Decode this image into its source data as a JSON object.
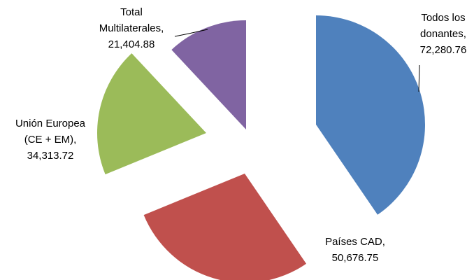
{
  "chart_data": {
    "type": "pie",
    "categories": [
      [
        "Todos los",
        "donantes,"
      ],
      [
        "Países CAD,"
      ],
      [
        "Unión Europea",
        "(CE + EM),"
      ],
      [
        "Total",
        "Multilaterales,"
      ]
    ],
    "values": [
      72280.76,
      50676.75,
      34313.72,
      21404.88
    ],
    "value_labels": [
      "72,280.76",
      "50,676.75",
      "34,313.72",
      "21,404.88"
    ],
    "colors": [
      "#4f81bd",
      "#c0504d",
      "#9bbb59",
      "#8064a2"
    ]
  }
}
